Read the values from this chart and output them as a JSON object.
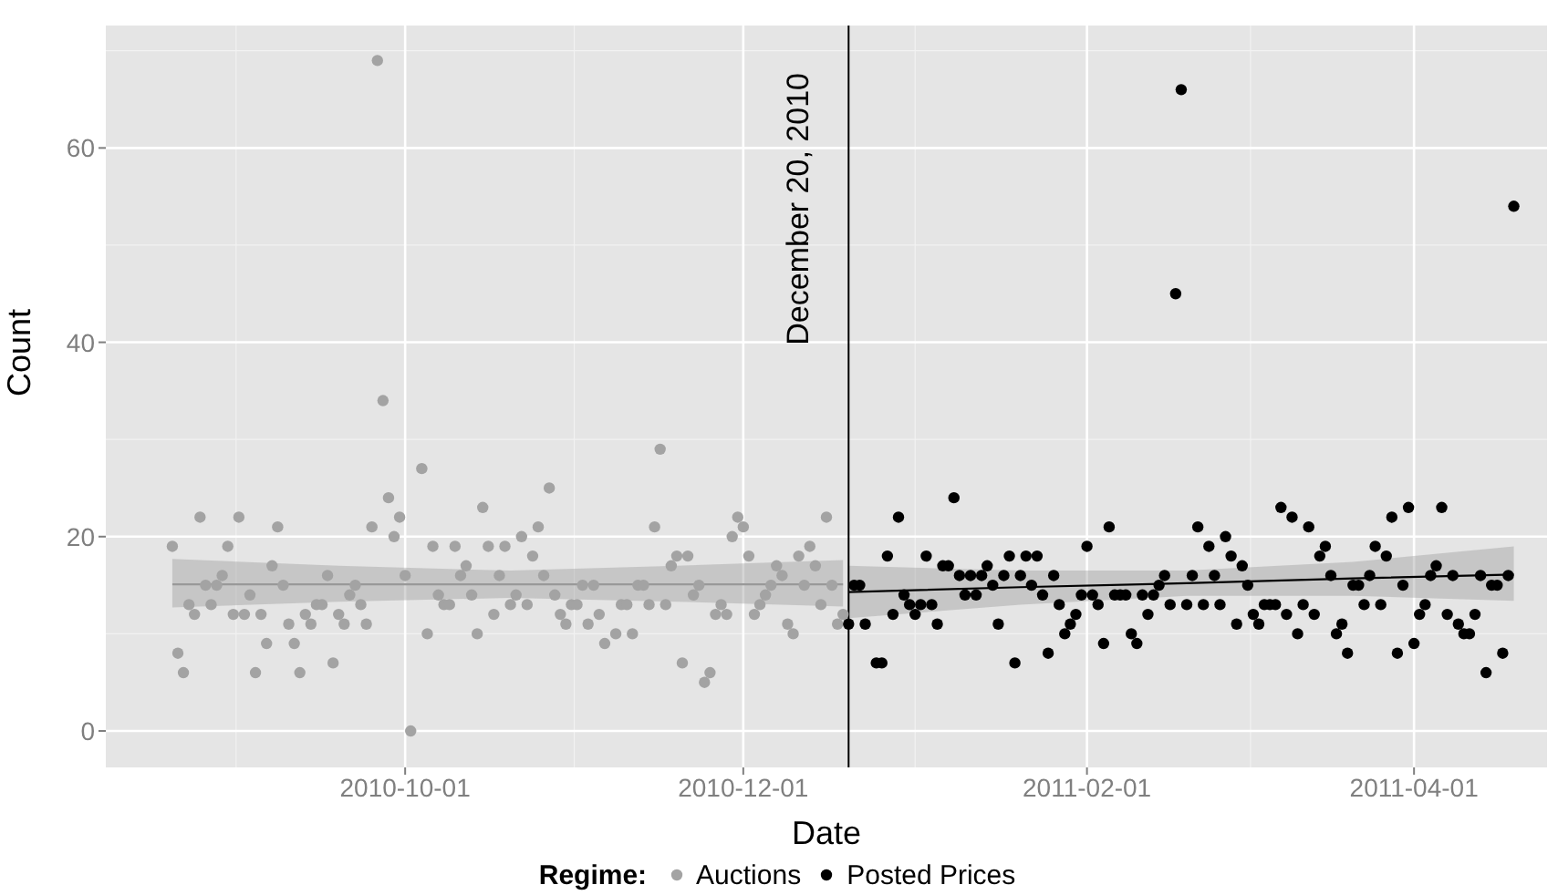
{
  "chart_data": {
    "type": "scatter",
    "xlabel": "Date",
    "ylabel": "Count",
    "legend_title": "Regime:",
    "legend": "bottom",
    "grid": true,
    "xlim": [
      "2010-08-08",
      "2011-04-25"
    ],
    "xticks": [
      "2010-10-01",
      "2010-12-01",
      "2011-02-01",
      "2011-04-01"
    ],
    "ylim": [
      -3.75,
      72.6
    ],
    "yticks": [
      0,
      20,
      40,
      60
    ],
    "ref_lines": [
      {
        "axis": "x",
        "value": "2010-12-20",
        "label": "December 20, 2010",
        "color": "#000000"
      }
    ],
    "series": [
      {
        "name": "Auctions",
        "marker": "circle",
        "color": "#a3a3a3",
        "x": [
          "2010-08-20",
          "2010-08-21",
          "2010-08-22",
          "2010-08-23",
          "2010-08-24",
          "2010-08-25",
          "2010-08-26",
          "2010-08-27",
          "2010-08-28",
          "2010-08-29",
          "2010-08-30",
          "2010-08-31",
          "2010-09-01",
          "2010-09-02",
          "2010-09-03",
          "2010-09-04",
          "2010-09-05",
          "2010-09-06",
          "2010-09-07",
          "2010-09-08",
          "2010-09-09",
          "2010-09-10",
          "2010-09-11",
          "2010-09-12",
          "2010-09-13",
          "2010-09-14",
          "2010-09-15",
          "2010-09-16",
          "2010-09-17",
          "2010-09-18",
          "2010-09-19",
          "2010-09-20",
          "2010-09-21",
          "2010-09-22",
          "2010-09-23",
          "2010-09-24",
          "2010-09-25",
          "2010-09-26",
          "2010-09-27",
          "2010-09-28",
          "2010-09-29",
          "2010-09-30",
          "2010-10-01",
          "2010-10-02",
          "2010-10-04",
          "2010-10-05",
          "2010-10-06",
          "2010-10-07",
          "2010-10-08",
          "2010-10-09",
          "2010-10-10",
          "2010-10-11",
          "2010-10-12",
          "2010-10-13",
          "2010-10-14",
          "2010-10-15",
          "2010-10-16",
          "2010-10-17",
          "2010-10-18",
          "2010-10-19",
          "2010-10-20",
          "2010-10-21",
          "2010-10-22",
          "2010-10-23",
          "2010-10-24",
          "2010-10-25",
          "2010-10-26",
          "2010-10-27",
          "2010-10-28",
          "2010-10-29",
          "2010-10-30",
          "2010-10-31",
          "2010-11-01",
          "2010-11-02",
          "2010-11-03",
          "2010-11-04",
          "2010-11-05",
          "2010-11-06",
          "2010-11-08",
          "2010-11-09",
          "2010-11-10",
          "2010-11-11",
          "2010-11-12",
          "2010-11-13",
          "2010-11-14",
          "2010-11-15",
          "2010-11-16",
          "2010-11-17",
          "2010-11-18",
          "2010-11-19",
          "2010-11-20",
          "2010-11-21",
          "2010-11-22",
          "2010-11-23",
          "2010-11-24",
          "2010-11-25",
          "2010-11-26",
          "2010-11-27",
          "2010-11-28",
          "2010-11-29",
          "2010-11-30",
          "2010-12-01",
          "2010-12-02",
          "2010-12-03",
          "2010-12-04",
          "2010-12-05",
          "2010-12-06",
          "2010-12-07",
          "2010-12-08",
          "2010-12-09",
          "2010-12-10",
          "2010-12-11",
          "2010-12-12",
          "2010-12-13",
          "2010-12-14",
          "2010-12-15",
          "2010-12-16",
          "2010-12-17",
          "2010-12-18",
          "2010-12-19"
        ],
        "values": [
          19,
          8,
          6,
          13,
          12,
          22,
          15,
          13,
          15,
          16,
          19,
          12,
          22,
          12,
          14,
          6,
          12,
          9,
          17,
          21,
          15,
          11,
          9,
          6,
          12,
          11,
          13,
          13,
          16,
          7,
          12,
          11,
          14,
          15,
          13,
          11,
          21,
          69,
          34,
          24,
          20,
          22,
          16,
          0,
          27,
          10,
          19,
          14,
          13,
          13,
          19,
          16,
          17,
          14,
          10,
          23,
          19,
          12,
          16,
          19,
          13,
          14,
          20,
          13,
          18,
          21,
          16,
          25,
          14,
          12,
          11,
          13,
          13,
          15,
          11,
          15,
          12,
          9,
          10,
          13,
          13,
          10,
          15,
          15,
          13,
          21,
          29,
          13,
          17,
          18,
          7,
          18,
          14,
          15,
          5,
          6,
          12,
          13,
          12,
          20,
          22,
          21,
          18,
          12,
          13,
          14,
          15,
          17,
          16,
          11,
          10,
          18,
          15,
          19,
          17,
          13,
          22,
          15,
          11,
          12
        ]
      },
      {
        "name": "Posted Prices",
        "marker": "circle",
        "color": "#000000",
        "x": [
          "2010-12-20",
          "2010-12-21",
          "2010-12-22",
          "2010-12-23",
          "2010-12-25",
          "2010-12-26",
          "2010-12-27",
          "2010-12-28",
          "2010-12-29",
          "2010-12-30",
          "2010-12-31",
          "2011-01-01",
          "2011-01-02",
          "2011-01-03",
          "2011-01-04",
          "2011-01-05",
          "2011-01-06",
          "2011-01-07",
          "2011-01-08",
          "2011-01-09",
          "2011-01-10",
          "2011-01-11",
          "2011-01-12",
          "2011-01-13",
          "2011-01-14",
          "2011-01-15",
          "2011-01-16",
          "2011-01-17",
          "2011-01-18",
          "2011-01-19",
          "2011-01-20",
          "2011-01-21",
          "2011-01-22",
          "2011-01-23",
          "2011-01-24",
          "2011-01-25",
          "2011-01-26",
          "2011-01-27",
          "2011-01-28",
          "2011-01-29",
          "2011-01-30",
          "2011-01-31",
          "2011-02-01",
          "2011-02-02",
          "2011-02-03",
          "2011-02-04",
          "2011-02-05",
          "2011-02-06",
          "2011-02-07",
          "2011-02-08",
          "2011-02-09",
          "2011-02-10",
          "2011-02-11",
          "2011-02-12",
          "2011-02-13",
          "2011-02-14",
          "2011-02-15",
          "2011-02-16",
          "2011-02-17",
          "2011-02-18",
          "2011-02-19",
          "2011-02-20",
          "2011-02-21",
          "2011-02-22",
          "2011-02-23",
          "2011-02-24",
          "2011-02-25",
          "2011-02-26",
          "2011-02-27",
          "2011-02-28",
          "2011-03-01",
          "2011-03-02",
          "2011-03-03",
          "2011-03-04",
          "2011-03-05",
          "2011-03-06",
          "2011-03-07",
          "2011-03-08",
          "2011-03-09",
          "2011-03-10",
          "2011-03-11",
          "2011-03-12",
          "2011-03-13",
          "2011-03-14",
          "2011-03-15",
          "2011-03-16",
          "2011-03-17",
          "2011-03-18",
          "2011-03-19",
          "2011-03-20",
          "2011-03-21",
          "2011-03-22",
          "2011-03-23",
          "2011-03-24",
          "2011-03-25",
          "2011-03-26",
          "2011-03-27",
          "2011-03-28",
          "2011-03-29",
          "2011-03-30",
          "2011-03-31",
          "2011-04-01",
          "2011-04-02",
          "2011-04-03",
          "2011-04-04",
          "2011-04-05",
          "2011-04-06",
          "2011-04-07",
          "2011-04-08",
          "2011-04-09",
          "2011-04-10",
          "2011-04-11",
          "2011-04-12",
          "2011-04-13",
          "2011-04-14",
          "2011-04-15",
          "2011-04-16",
          "2011-04-17",
          "2011-04-18",
          "2011-04-19"
        ],
        "values": [
          11,
          15,
          15,
          11,
          7,
          7,
          18,
          12,
          22,
          14,
          13,
          12,
          13,
          18,
          13,
          11,
          17,
          17,
          24,
          16,
          14,
          16,
          14,
          16,
          17,
          15,
          11,
          16,
          18,
          7,
          16,
          18,
          15,
          18,
          14,
          8,
          16,
          13,
          10,
          11,
          12,
          14,
          19,
          14,
          13,
          9,
          21,
          14,
          14,
          14,
          10,
          9,
          14,
          12,
          14,
          15,
          16,
          13,
          45,
          66,
          13,
          16,
          21,
          13,
          19,
          16,
          13,
          20,
          18,
          11,
          17,
          15,
          12,
          11,
          13,
          13,
          13,
          23,
          12,
          22,
          10,
          13,
          21,
          12,
          18,
          19,
          16,
          10,
          11,
          8,
          15,
          15,
          13,
          16,
          19,
          13,
          18,
          22,
          8,
          15,
          23,
          9,
          12,
          13,
          16,
          17,
          23,
          12,
          16,
          11,
          10,
          10,
          12,
          16,
          6,
          15,
          15,
          8,
          16,
          54
        ]
      },
      {
        "type": "line",
        "color": "#999999",
        "x": [
          "2010-08-20",
          "2010-09-19",
          "2010-10-20",
          "2010-11-19",
          "2010-12-19"
        ],
        "values": [
          15.1,
          15.1,
          15.1,
          15.1,
          15.1
        ],
        "lower": [
          12.7,
          13.3,
          13.7,
          13.3,
          12.8
        ],
        "upper": [
          17.7,
          17.0,
          16.5,
          17.0,
          17.6
        ]
      },
      {
        "type": "line",
        "color": "#000000",
        "x": [
          "2010-12-20",
          "2011-01-20",
          "2011-02-19",
          "2011-03-21",
          "2011-04-19"
        ],
        "values": [
          14.3,
          14.8,
          15.2,
          15.7,
          16.1
        ],
        "lower": [
          11.6,
          13.0,
          13.9,
          13.9,
          13.4
        ],
        "upper": [
          17.0,
          16.5,
          16.5,
          17.4,
          19.0
        ]
      }
    ]
  }
}
